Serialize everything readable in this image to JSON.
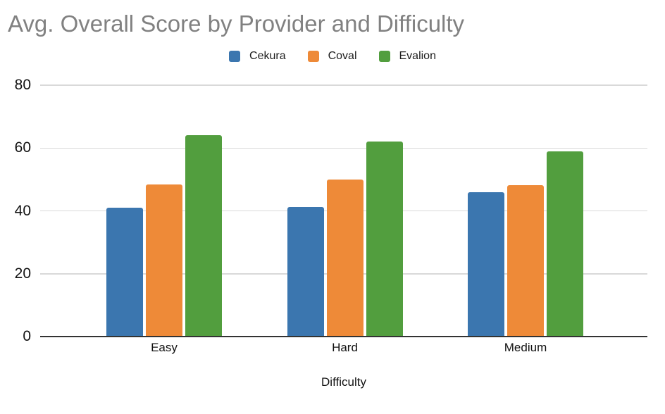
{
  "chart_data": {
    "type": "bar",
    "title": "Avg. Overall Score by Provider and Difficulty",
    "xlabel": "Difficulty",
    "ylabel": "",
    "categories": [
      "Easy",
      "Hard",
      "Medium"
    ],
    "series": [
      {
        "name": "Cekura",
        "color": "#3b76af",
        "values": [
          41,
          41.2,
          46
        ]
      },
      {
        "name": "Coval",
        "color": "#ee8a38",
        "values": [
          48.5,
          50,
          48.2
        ]
      },
      {
        "name": "Evalion",
        "color": "#529e3e",
        "values": [
          64,
          62,
          59
        ]
      }
    ],
    "ylim": [
      0,
      80
    ],
    "yticks": [
      0,
      20,
      40,
      60,
      80
    ],
    "grid": true,
    "legend_position": "top-center",
    "title_color": "#818181",
    "gridline_color": "#d9d9d9",
    "axis_line_color": "#333333",
    "tick_label_color": "#111111"
  }
}
